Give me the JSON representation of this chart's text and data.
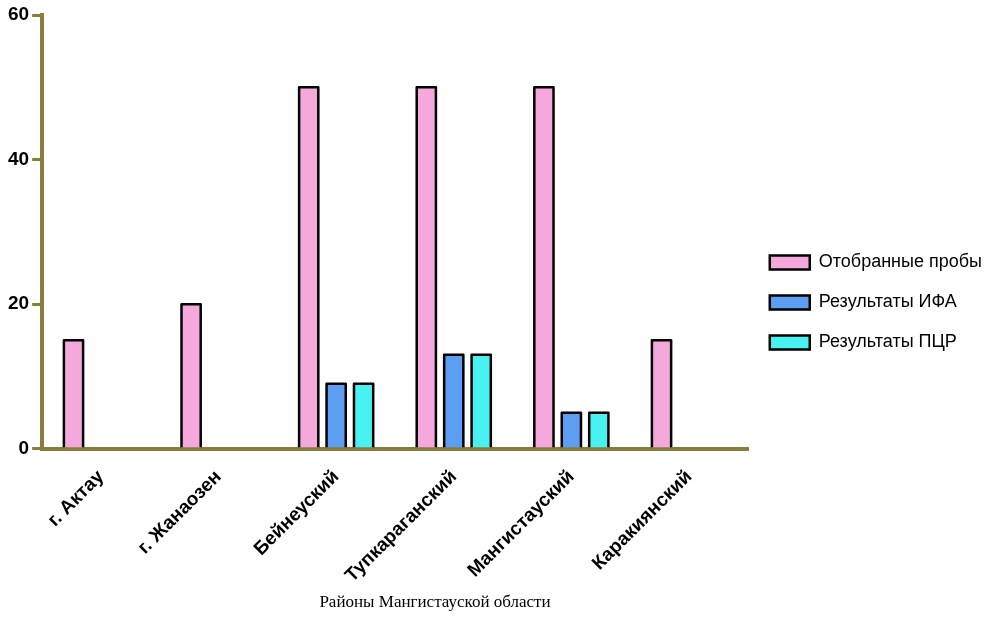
{
  "chart_data": {
    "type": "bar",
    "xlabel": "Районы Мангистауской области",
    "categories": [
      "г. Актау",
      "г. Жанаозен",
      "Бейнеуский",
      "Тупкараганский",
      "Мангистауский",
      "Каракиянский"
    ],
    "series": [
      {
        "name": "Отобранные пробы",
        "color": "#f4a8dc",
        "values": [
          15,
          20,
          50,
          50,
          50,
          15
        ]
      },
      {
        "name": "Результаты ИФА",
        "color": "#5b9ef2",
        "values": [
          null,
          null,
          9,
          13,
          5,
          null
        ]
      },
      {
        "name": "Результаты ПЦР",
        "color": "#48f2f0",
        "values": [
          null,
          null,
          9,
          13,
          5,
          null
        ]
      }
    ],
    "ylim": [
      0,
      60
    ],
    "yticks": [
      0,
      20,
      40,
      60
    ],
    "grid": false,
    "legend": "right"
  }
}
